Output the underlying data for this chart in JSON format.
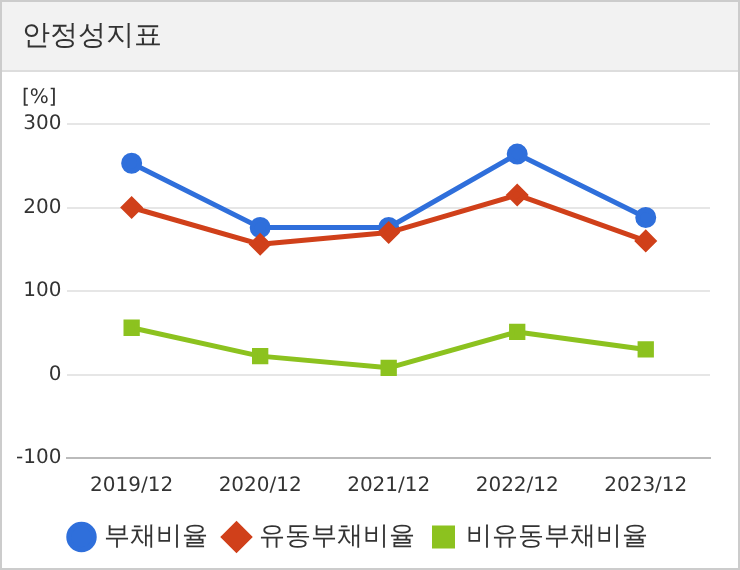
{
  "chart_data": {
    "type": "line",
    "title": "안정성지표",
    "ylabel": "[%]",
    "categories": [
      "2019/12",
      "2020/12",
      "2021/12",
      "2022/12",
      "2023/12"
    ],
    "series": [
      {
        "name": "부채비율",
        "color": "#2f6fdb",
        "values": [
          253,
          176,
          176,
          264,
          188
        ],
        "marker": "circle"
      },
      {
        "name": "유동부채비율",
        "color": "#d0401a",
        "values": [
          200,
          156,
          170,
          215,
          160
        ],
        "marker": "diamond"
      },
      {
        "name": "비유동부채비율",
        "color": "#8cc21f",
        "values": [
          56,
          22,
          8,
          51,
          30
        ],
        "marker": "square"
      }
    ],
    "ylim": [
      -100,
      300
    ],
    "yticks": [
      -100,
      0,
      100,
      200,
      300
    ],
    "grid": "y",
    "legend": "bottom",
    "line_style": "solid"
  }
}
